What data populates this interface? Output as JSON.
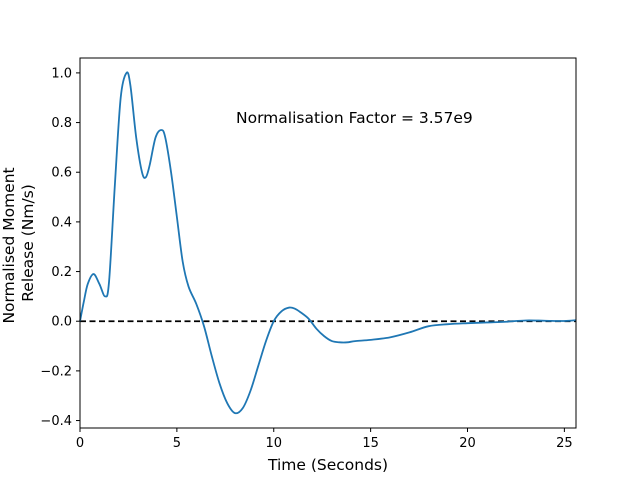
{
  "chart_data": {
    "type": "line",
    "title": "",
    "xlabel": "Time (Seconds)",
    "ylabel_lines": [
      "Normalised Moment",
      "Release (Nm/s)"
    ],
    "annotation": "Normalisation Factor = 3.57e9",
    "xlim": [
      0,
      25.6
    ],
    "ylim": [
      -0.43,
      1.06
    ],
    "xticks": [
      0,
      5,
      10,
      15,
      20,
      25
    ],
    "yticks": [
      -0.4,
      -0.2,
      0.0,
      0.2,
      0.4,
      0.6,
      0.8,
      1.0
    ],
    "xtick_labels": [
      "0",
      "5",
      "10",
      "15",
      "20",
      "25"
    ],
    "ytick_labels": [
      "−0.4",
      "−0.2",
      "0.0",
      "0.2",
      "0.4",
      "0.6",
      "0.8",
      "1.0"
    ],
    "reference_line": {
      "y": 0,
      "style": "dashed",
      "color": "#000000"
    },
    "series": [
      {
        "color": "#1f77b4",
        "x": [
          0,
          0.2,
          0.4,
          0.7,
          1.0,
          1.3,
          1.5,
          1.8,
          2.1,
          2.4,
          2.6,
          2.9,
          3.2,
          3.4,
          3.6,
          3.9,
          4.2,
          4.4,
          4.7,
          5.0,
          5.3,
          5.6,
          6.0,
          6.4,
          6.8,
          7.2,
          7.6,
          8.0,
          8.4,
          8.8,
          9.2,
          9.6,
          10.0,
          10.4,
          10.8,
          11.1,
          11.4,
          11.8,
          12.2,
          12.6,
          13.0,
          13.4,
          13.8,
          14.2,
          15.0,
          16.0,
          17.0,
          18.0,
          19.0,
          20.0,
          21.0,
          22.0,
          23.0,
          24.0,
          25.0,
          25.6
        ],
        "y": [
          0.0,
          0.08,
          0.15,
          0.19,
          0.15,
          0.1,
          0.16,
          0.55,
          0.9,
          1.0,
          0.95,
          0.74,
          0.6,
          0.58,
          0.63,
          0.74,
          0.77,
          0.74,
          0.6,
          0.42,
          0.24,
          0.14,
          0.07,
          -0.02,
          -0.14,
          -0.25,
          -0.33,
          -0.37,
          -0.35,
          -0.28,
          -0.18,
          -0.08,
          0.0,
          0.04,
          0.055,
          0.05,
          0.035,
          0.01,
          -0.03,
          -0.06,
          -0.08,
          -0.085,
          -0.085,
          -0.08,
          -0.075,
          -0.065,
          -0.045,
          -0.02,
          -0.012,
          -0.008,
          -0.005,
          -0.002,
          0.003,
          0.002,
          0.001,
          0.004
        ]
      }
    ]
  }
}
